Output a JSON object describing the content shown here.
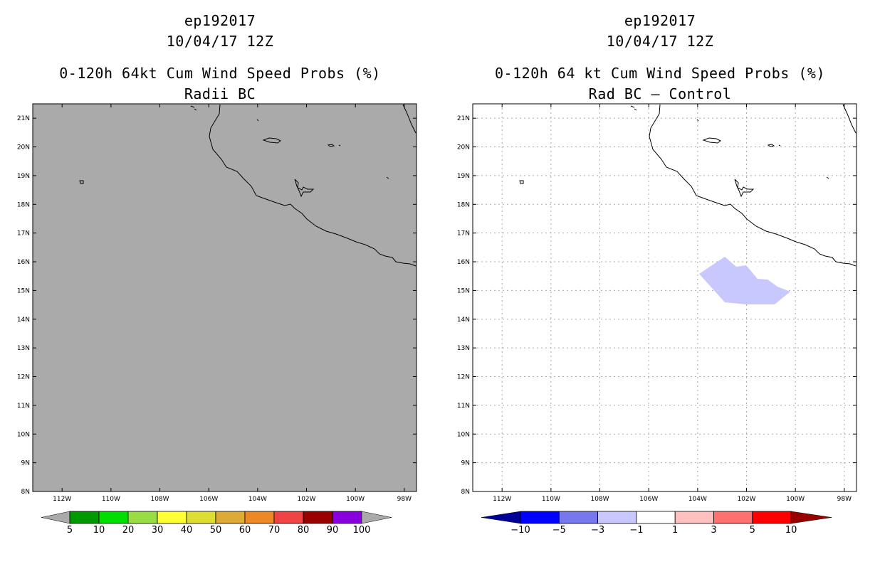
{
  "panels": {
    "left": {
      "storm_id": "ep192017",
      "date_time": "10/04/17 12Z",
      "title": "0-120h 64kt Cum Wind Speed Probs (%)",
      "subtitle": "Radii BC",
      "field_fill": "#aaaaaa",
      "colorbar": {
        "colors": [
          "#009900",
          "#00dd00",
          "#99dd44",
          "#ffff33",
          "#dddd33",
          "#ddaa33",
          "#ee8822",
          "#ee4444",
          "#990000",
          "#8800dd"
        ],
        "labels": [
          "5",
          "10",
          "20",
          "30",
          "40",
          "50",
          "60",
          "70",
          "80",
          "90",
          "100"
        ],
        "end_color": "#aaaaaa"
      }
    },
    "right": {
      "storm_id": "ep192017",
      "date_time": "10/04/17 12Z",
      "title": "0-120h 64 kt Cum Wind Speed Probs (%)",
      "subtitle": "Rad BC – Control",
      "field_fill": "#ffffff",
      "anomaly_fill": "#c8c8ff",
      "anomaly_range": "-3 to -1",
      "colorbar": {
        "colors": [
          "#0000ff",
          "#7777ee",
          "#c8c8ff",
          "#ffffff",
          "#ffc0c0",
          "#ff7070",
          "#ff0000"
        ],
        "low_end_color": "#000099",
        "high_end_color": "#990000",
        "labels": [
          "−10",
          "−5",
          "−3",
          "−1",
          "1",
          "3",
          "5",
          "10"
        ]
      }
    }
  },
  "map": {
    "lon_labels": [
      "112W",
      "110W",
      "108W",
      "106W",
      "104W",
      "102W",
      "100W",
      "98W"
    ],
    "lat_labels": [
      "21N",
      "20N",
      "19N",
      "18N",
      "17N",
      "16N",
      "15N",
      "14N",
      "13N",
      "12N",
      "11N",
      "10N",
      "9N",
      "8N"
    ],
    "coast_color": "#000000",
    "grid_color": "#aaaaaa"
  }
}
